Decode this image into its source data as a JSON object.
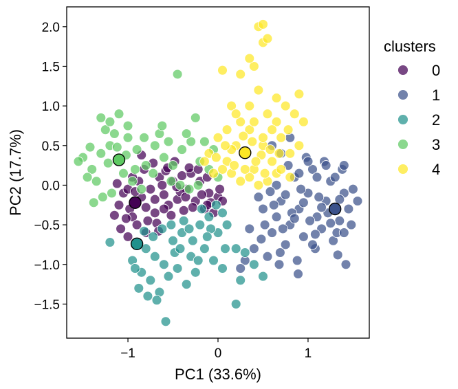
{
  "chart_data": {
    "type": "scatter",
    "title": "",
    "xlabel": "PC1 (33.6%)",
    "ylabel": "PC2 (17.7%)",
    "xlim": [
      -1.68,
      1.68
    ],
    "ylim": [
      -1.93,
      2.25
    ],
    "xticks": [
      -1,
      0,
      1
    ],
    "xtick_labels": [
      "−1",
      "0",
      "1"
    ],
    "yticks": [
      -1.5,
      -1.0,
      -0.5,
      0.0,
      0.5,
      1.0,
      1.5,
      2.0
    ],
    "ytick_labels": [
      "−1.5",
      "−1.0",
      "−0.5",
      "0.0",
      "0.5",
      "1.0",
      "1.5",
      "2.0"
    ],
    "grid": false,
    "legend": {
      "title": "clusters",
      "position": "outside-right",
      "labels": [
        "0",
        "1",
        "2",
        "3",
        "4"
      ]
    },
    "colors": [
      "#440154",
      "#3b528b",
      "#21918c",
      "#5ec962",
      "#fde725"
    ],
    "centroids": [
      {
        "cluster": "0",
        "x": -0.92,
        "y": -0.22
      },
      {
        "cluster": "1",
        "x": 1.3,
        "y": -0.3
      },
      {
        "cluster": "2",
        "x": -0.9,
        "y": -0.74
      },
      {
        "cluster": "3",
        "x": -1.1,
        "y": 0.32
      },
      {
        "cluster": "4",
        "x": 0.3,
        "y": 0.41
      }
    ],
    "series": [
      {
        "name": "0",
        "points": [
          [
            -0.92,
            -0.22
          ],
          [
            -0.85,
            -0.15
          ],
          [
            -1.05,
            -0.1
          ],
          [
            -0.98,
            -0.3
          ],
          [
            -0.8,
            -0.28
          ],
          [
            -0.75,
            -0.05
          ],
          [
            -1.1,
            -0.25
          ],
          [
            -0.95,
            -0.4
          ],
          [
            -0.7,
            -0.35
          ],
          [
            -0.88,
            0.05
          ],
          [
            -1.15,
            -0.38
          ],
          [
            -0.6,
            -0.12
          ],
          [
            -0.55,
            -0.25
          ],
          [
            -0.65,
            0.1
          ],
          [
            -0.78,
            -0.45
          ],
          [
            -1.0,
            -0.05
          ],
          [
            -0.82,
            0.2
          ],
          [
            -0.5,
            0.05
          ],
          [
            -0.45,
            -0.18
          ],
          [
            -0.4,
            0.12
          ],
          [
            -0.35,
            -0.05
          ],
          [
            -0.3,
            0.15
          ],
          [
            -0.25,
            -0.2
          ],
          [
            -0.2,
            0.05
          ],
          [
            -0.15,
            -0.3
          ],
          [
            -0.1,
            -0.1
          ],
          [
            0.0,
            -0.15
          ],
          [
            0.05,
            -0.2
          ],
          [
            -0.05,
            -0.35
          ],
          [
            -0.12,
            0.1
          ],
          [
            -0.58,
            0.18
          ],
          [
            -0.68,
            -0.48
          ],
          [
            -0.9,
            -0.5
          ],
          [
            -1.08,
            -0.55
          ],
          [
            -0.72,
            0.28
          ],
          [
            -0.62,
            0.0
          ],
          [
            -0.52,
            -0.38
          ],
          [
            -0.42,
            -0.08
          ],
          [
            -0.28,
            -0.28
          ],
          [
            -0.18,
            -0.12
          ],
          [
            -0.95,
            0.1
          ],
          [
            -1.12,
            0.02
          ],
          [
            -0.85,
            0.38
          ],
          [
            -0.48,
            0.3
          ],
          [
            -0.32,
            0.22
          ],
          [
            -0.08,
            -0.22
          ],
          [
            -0.6,
            -0.3
          ],
          [
            -0.8,
            -0.6
          ],
          [
            -1.0,
            -0.65
          ],
          [
            -0.7,
            -0.18
          ],
          [
            -0.38,
            -0.32
          ],
          [
            -0.22,
            0.2
          ],
          [
            -0.12,
            -0.25
          ],
          [
            0.02,
            -0.05
          ],
          [
            -0.92,
            -0.08
          ],
          [
            -1.02,
            -0.42
          ],
          [
            -0.66,
            -0.58
          ],
          [
            -0.56,
            0.22
          ],
          [
            -0.46,
            -0.02
          ],
          [
            -0.36,
            -0.15
          ]
        ]
      },
      {
        "name": "1",
        "points": [
          [
            1.3,
            -0.3
          ],
          [
            1.2,
            -0.2
          ],
          [
            1.1,
            -0.4
          ],
          [
            1.0,
            -0.1
          ],
          [
            0.9,
            -0.3
          ],
          [
            0.8,
            -0.5
          ],
          [
            0.7,
            -0.2
          ],
          [
            0.6,
            -0.6
          ],
          [
            0.5,
            -0.3
          ],
          [
            0.4,
            -0.8
          ],
          [
            1.4,
            -0.1
          ],
          [
            1.35,
            -0.45
          ],
          [
            1.25,
            0.05
          ],
          [
            1.15,
            -0.55
          ],
          [
            1.05,
            0.2
          ],
          [
            0.95,
            -0.65
          ],
          [
            0.85,
            0.1
          ],
          [
            0.75,
            -0.75
          ],
          [
            0.65,
            0.0
          ],
          [
            0.55,
            -0.9
          ],
          [
            1.45,
            -0.3
          ],
          [
            1.5,
            -0.05
          ],
          [
            1.38,
            0.2
          ],
          [
            1.28,
            -0.7
          ],
          [
            1.18,
            0.3
          ],
          [
            1.08,
            -0.8
          ],
          [
            0.98,
            0.35
          ],
          [
            0.88,
            -0.95
          ],
          [
            0.78,
            0.25
          ],
          [
            0.68,
            -1.0
          ],
          [
            1.55,
            -0.2
          ],
          [
            1.48,
            -0.5
          ],
          [
            1.32,
            -0.6
          ],
          [
            1.22,
            -0.35
          ],
          [
            1.12,
            -0.15
          ],
          [
            1.02,
            -0.45
          ],
          [
            0.92,
            -0.05
          ],
          [
            0.82,
            -0.35
          ],
          [
            0.72,
            -0.55
          ],
          [
            0.62,
            -0.25
          ],
          [
            0.52,
            -0.5
          ],
          [
            0.45,
            -0.15
          ],
          [
            0.35,
            -0.55
          ],
          [
            0.3,
            -0.95
          ],
          [
            0.25,
            -1.05
          ],
          [
            1.4,
            -0.6
          ],
          [
            1.3,
            0.1
          ],
          [
            1.1,
            0.1
          ],
          [
            0.9,
            0.15
          ],
          [
            0.7,
            0.4
          ],
          [
            0.6,
            0.5
          ],
          [
            0.8,
            0.6
          ],
          [
            1.0,
            0.3
          ],
          [
            1.2,
            0.25
          ],
          [
            1.4,
            0.25
          ],
          [
            1.33,
            -0.88
          ],
          [
            1.42,
            -1.0
          ],
          [
            0.89,
            -1.12
          ],
          [
            0.69,
            -0.85
          ],
          [
            1.05,
            -0.75
          ],
          [
            0.85,
            -0.42
          ],
          [
            0.75,
            -0.12
          ],
          [
            0.95,
            -0.22
          ],
          [
            1.15,
            -0.28
          ],
          [
            0.65,
            -0.4
          ],
          [
            0.58,
            -0.08
          ],
          [
            1.25,
            -0.48
          ],
          [
            1.35,
            -0.18
          ],
          [
            0.48,
            -0.68
          ],
          [
            1.08,
            -0.62
          ]
        ]
      },
      {
        "name": "2",
        "points": [
          [
            -0.9,
            -0.74
          ],
          [
            -0.8,
            -0.8
          ],
          [
            -0.7,
            -0.9
          ],
          [
            -0.6,
            -1.0
          ],
          [
            -0.5,
            -0.7
          ],
          [
            -0.4,
            -0.6
          ],
          [
            -0.3,
            -0.9
          ],
          [
            -0.2,
            -0.5
          ],
          [
            -0.1,
            -0.4
          ],
          [
            0.0,
            -0.6
          ],
          [
            -1.2,
            -0.72
          ],
          [
            -0.95,
            -0.95
          ],
          [
            -0.85,
            -1.1
          ],
          [
            -0.75,
            -1.2
          ],
          [
            -0.65,
            -1.35
          ],
          [
            -0.55,
            -1.15
          ],
          [
            -0.45,
            -1.05
          ],
          [
            -0.35,
            -1.25
          ],
          [
            -0.25,
            -1.1
          ],
          [
            -0.15,
            -0.8
          ],
          [
            -0.58,
            -1.72
          ],
          [
            -0.88,
            -1.3
          ],
          [
            -0.68,
            -1.45
          ],
          [
            -0.48,
            -0.85
          ],
          [
            -0.38,
            -0.45
          ],
          [
            -0.28,
            -0.7
          ],
          [
            -0.18,
            -0.3
          ],
          [
            -0.08,
            -0.55
          ],
          [
            0.05,
            -0.35
          ],
          [
            0.1,
            -0.5
          ],
          [
            0.2,
            -0.8
          ],
          [
            0.25,
            -1.2
          ],
          [
            0.2,
            -1.5
          ],
          [
            0.4,
            -1.0
          ],
          [
            0.5,
            -1.15
          ],
          [
            0.3,
            -0.85
          ],
          [
            -0.05,
            -0.95
          ],
          [
            0.05,
            -1.05
          ],
          [
            -0.62,
            -0.55
          ],
          [
            -0.72,
            -0.65
          ],
          [
            -0.52,
            -0.5
          ],
          [
            -0.42,
            -0.8
          ],
          [
            -0.32,
            -0.55
          ],
          [
            -0.22,
            -0.95
          ],
          [
            -0.12,
            -0.65
          ],
          [
            -0.02,
            -0.25
          ],
          [
            0.08,
            -0.8
          ],
          [
            -0.82,
            -0.58
          ],
          [
            -0.92,
            -1.05
          ],
          [
            -0.78,
            -1.4
          ]
        ]
      },
      {
        "name": "3",
        "points": [
          [
            -1.1,
            0.32
          ],
          [
            -1.2,
            0.5
          ],
          [
            -1.3,
            0.4
          ],
          [
            -1.4,
            0.2
          ],
          [
            -1.5,
            0.35
          ],
          [
            -1.0,
            0.6
          ],
          [
            -0.9,
            0.45
          ],
          [
            -0.8,
            0.25
          ],
          [
            -0.7,
            0.5
          ],
          [
            -0.6,
            0.35
          ],
          [
            -1.25,
            0.7
          ],
          [
            -1.15,
            0.65
          ],
          [
            -1.05,
            0.15
          ],
          [
            -0.95,
            0.05
          ],
          [
            -0.85,
            -0.05
          ],
          [
            -1.35,
            0.05
          ],
          [
            -1.28,
            -0.15
          ],
          [
            -1.18,
            -0.1
          ],
          [
            -1.38,
            -0.22
          ],
          [
            -1.45,
            0.1
          ],
          [
            -1.3,
            0.85
          ],
          [
            -1.2,
            0.8
          ],
          [
            -1.1,
            0.9
          ],
          [
            -1.0,
            0.75
          ],
          [
            -0.45,
            1.4
          ],
          [
            -0.65,
            0.65
          ],
          [
            -0.55,
            0.55
          ],
          [
            -0.5,
            0.25
          ],
          [
            -0.4,
            0.45
          ],
          [
            -0.3,
            0.55
          ],
          [
            -0.2,
            0.3
          ],
          [
            -0.1,
            0.2
          ],
          [
            0.0,
            0.1
          ],
          [
            -0.25,
            0.85
          ],
          [
            -0.35,
            0.65
          ],
          [
            -0.15,
            0.55
          ],
          [
            -0.05,
            0.45
          ],
          [
            -1.55,
            0.3
          ],
          [
            -1.42,
            0.48
          ],
          [
            -1.22,
            0.28
          ],
          [
            -1.12,
            0.48
          ],
          [
            -1.02,
            0.38
          ],
          [
            -0.92,
            0.2
          ],
          [
            -0.82,
            0.6
          ],
          [
            -0.72,
            0.15
          ],
          [
            -0.62,
            0.75
          ],
          [
            -0.52,
            0.05
          ],
          [
            -0.42,
            0.0
          ],
          [
            -0.32,
            -0.05
          ],
          [
            -0.22,
            0.0
          ]
        ]
      },
      {
        "name": "4",
        "points": [
          [
            0.3,
            0.41
          ],
          [
            0.2,
            0.5
          ],
          [
            0.1,
            0.3
          ],
          [
            0.0,
            0.6
          ],
          [
            -0.1,
            0.4
          ],
          [
            0.4,
            0.2
          ],
          [
            0.5,
            0.5
          ],
          [
            0.6,
            0.3
          ],
          [
            0.7,
            0.6
          ],
          [
            0.8,
            0.4
          ],
          [
            0.35,
            1.0
          ],
          [
            0.45,
            1.2
          ],
          [
            0.4,
            1.5
          ],
          [
            0.5,
            1.8
          ],
          [
            0.45,
            2.0
          ],
          [
            0.5,
            2.03
          ],
          [
            0.55,
            1.85
          ],
          [
            0.35,
            1.6
          ],
          [
            0.25,
            1.4
          ],
          [
            0.05,
            1.45
          ],
          [
            0.15,
            1.0
          ],
          [
            0.25,
            0.8
          ],
          [
            0.35,
            0.7
          ],
          [
            0.55,
            0.9
          ],
          [
            0.65,
            0.8
          ],
          [
            0.75,
            1.0
          ],
          [
            0.85,
            0.9
          ],
          [
            0.95,
            0.8
          ],
          [
            0.9,
            1.15
          ],
          [
            0.65,
            1.1
          ],
          [
            0.05,
            0.2
          ],
          [
            0.15,
            0.15
          ],
          [
            0.25,
            0.05
          ],
          [
            0.35,
            0.1
          ],
          [
            0.45,
            0.0
          ],
          [
            0.55,
            0.05
          ],
          [
            0.65,
            0.15
          ],
          [
            -0.05,
            0.15
          ],
          [
            -0.15,
            0.3
          ],
          [
            0.1,
            0.7
          ],
          [
            0.2,
            0.9
          ],
          [
            0.3,
            0.2
          ],
          [
            0.4,
            0.8
          ],
          [
            0.5,
            0.6
          ],
          [
            0.6,
            0.7
          ],
          [
            0.7,
            0.2
          ],
          [
            0.8,
            0.1
          ],
          [
            0.9,
            0.5
          ],
          [
            0.15,
            0.45
          ],
          [
            0.38,
            0.55
          ],
          [
            0.28,
            0.62
          ],
          [
            0.48,
            0.38
          ],
          [
            0.58,
            0.45
          ],
          [
            0.68,
            0.4
          ],
          [
            0.78,
            0.7
          ],
          [
            0.08,
            0.5
          ],
          [
            -0.02,
            0.35
          ],
          [
            0.18,
            0.25
          ],
          [
            0.42,
            0.3
          ],
          [
            0.52,
            0.15
          ]
        ]
      }
    ]
  }
}
